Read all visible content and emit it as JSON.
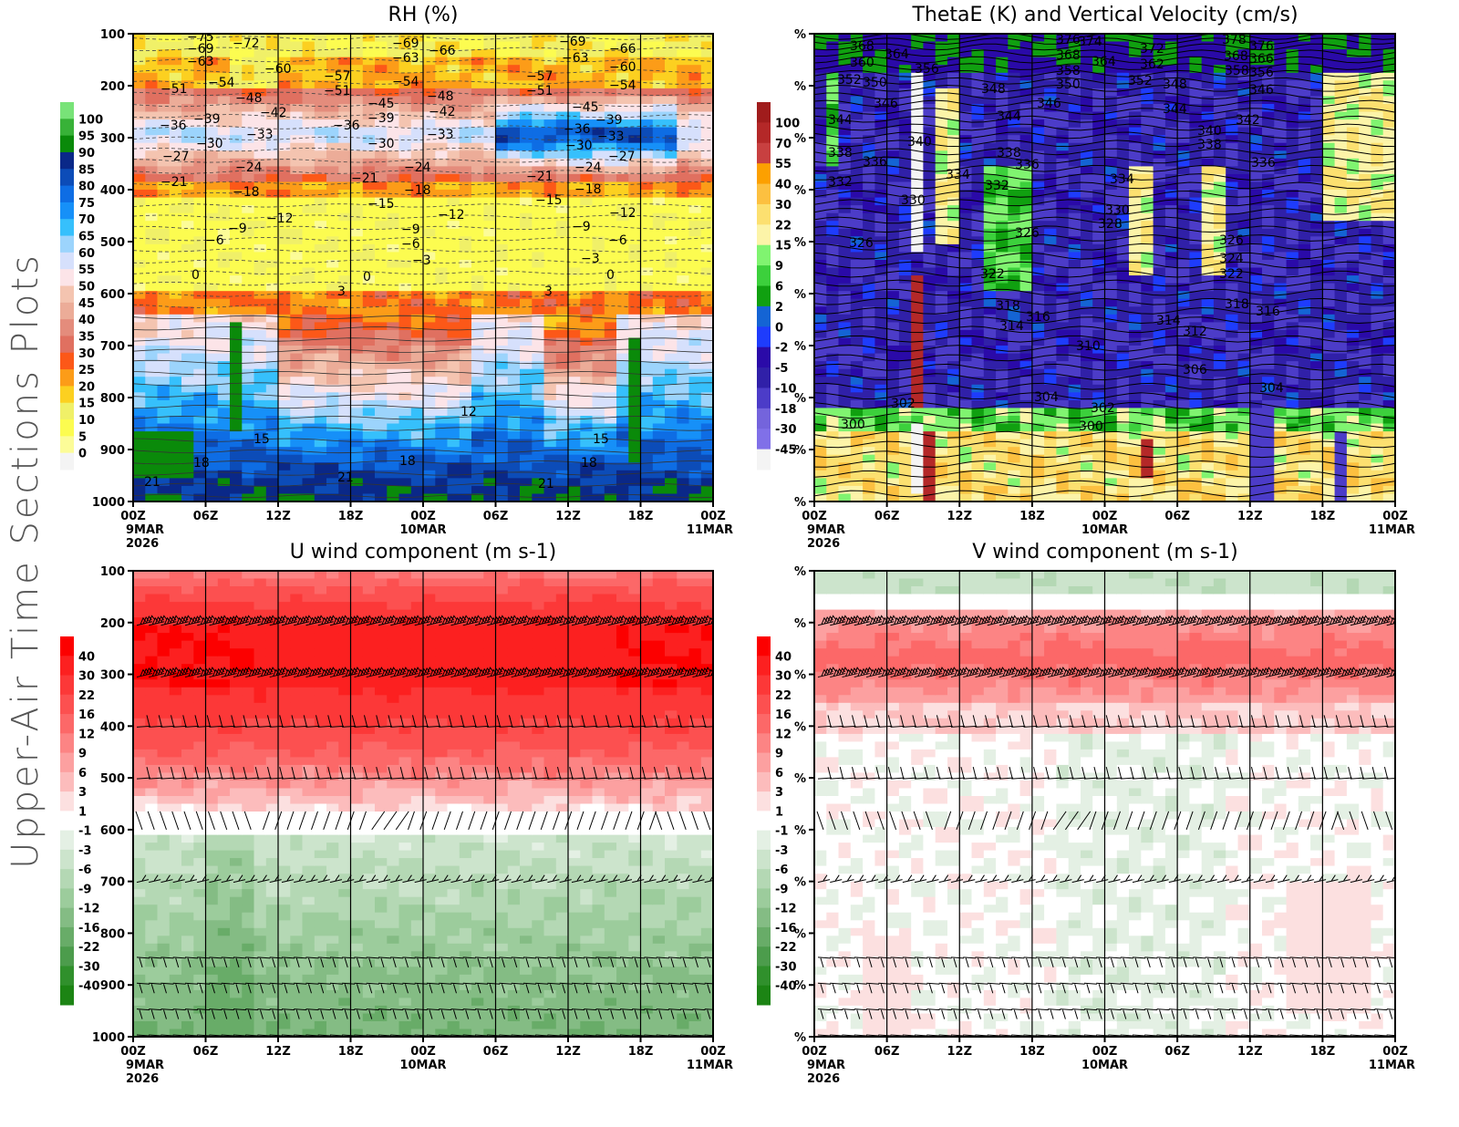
{
  "page": {
    "side_title": "Upper-Air Time Sections Plots"
  },
  "x_axis": {
    "ticks": [
      "00Z",
      "06Z",
      "12Z",
      "18Z",
      "00Z",
      "06Z",
      "12Z",
      "18Z",
      "00Z"
    ],
    "hours": [
      0,
      6,
      12,
      18,
      24,
      30,
      36,
      42,
      48
    ],
    "date_labels": [
      {
        "hour": 0,
        "lines": [
          "9MAR",
          "2026"
        ]
      },
      {
        "hour": 24,
        "lines": [
          "10MAR"
        ]
      },
      {
        "hour": 48,
        "lines": [
          "11MAR"
        ]
      }
    ]
  },
  "chart_data": [
    {
      "id": "rh",
      "type": "heatmap",
      "title": "RH (%)",
      "xlabel": "",
      "ylabel": "",
      "xlim": [
        0,
        48
      ],
      "ylim": [
        1000,
        100
      ],
      "y_ticks": [
        "100",
        "200",
        "300",
        "400",
        "500",
        "600",
        "700",
        "800",
        "900",
        "1000"
      ],
      "y_tick_values": [
        100,
        200,
        300,
        400,
        500,
        600,
        700,
        800,
        900,
        1000
      ],
      "colorbar": {
        "labels": [
          "100",
          "95",
          "90",
          "85",
          "80",
          "75",
          "70",
          "65",
          "60",
          "55",
          "50",
          "45",
          "40",
          "35",
          "30",
          "25",
          "20",
          "15",
          "10",
          "5",
          "0"
        ],
        "colors": [
          "#78e378",
          "#38b238",
          "#0a8a0a",
          "#0a2888",
          "#0c4cb8",
          "#0e6de4",
          "#1690f8",
          "#36c0fc",
          "#9cd4fc",
          "#d6e0fc",
          "#fce4e8",
          "#f4c4b0",
          "#ecac98",
          "#e48c7c",
          "#e07060",
          "#fc5818",
          "#fc9c18",
          "#fcd020",
          "#f0f068",
          "#fcfc50",
          "#fcfc98",
          "#f4f4f4"
        ]
      },
      "temperature_contour_labels": [
        "-75",
        "-72",
        "-69",
        "-66",
        "-63",
        "-60",
        "-57",
        "-54",
        "-51",
        "-48",
        "-45",
        "-42",
        "-39",
        "-36",
        "-33",
        "-30",
        "-27",
        "-24",
        "-21",
        "-18",
        "-15",
        "-12",
        "-9",
        "-6",
        "-3",
        "0",
        "3",
        "12",
        "15",
        "18",
        "21"
      ]
    },
    {
      "id": "thetae",
      "type": "heatmap",
      "title": "ThetaE (K) and Vertical Velocity (cm/s)",
      "xlim": [
        0,
        48
      ],
      "y_ticks": [
        "%",
        "%",
        "%",
        "%",
        "%",
        "%",
        "%",
        "%",
        "%",
        "%"
      ],
      "colorbar": {
        "labels": [
          "100",
          "70",
          "55",
          "40",
          "30",
          "22",
          "15",
          "9",
          "6",
          "2",
          "0",
          "-2",
          "-5",
          "-10",
          "-18",
          "-30",
          "-45"
        ],
        "colors": [
          "#a01c1c",
          "#b42828",
          "#c84040",
          "#fca000",
          "#fcc040",
          "#fce070",
          "#fcf4a8",
          "#80f470",
          "#3cd03c",
          "#10a010",
          "#1464d4",
          "#1e3cfc",
          "#2a0aa8",
          "#3020a8",
          "#4c3cc8",
          "#7464dc",
          "#8070e8",
          "#f4f4f4"
        ]
      },
      "thetae_contour_labels": [
        "378",
        "376",
        "374",
        "372",
        "368",
        "366",
        "364",
        "362",
        "360",
        "358",
        "356",
        "352",
        "350",
        "348",
        "346",
        "344",
        "342",
        "340",
        "338",
        "336",
        "334",
        "332",
        "330",
        "328",
        "326",
        "324",
        "322",
        "318",
        "316",
        "314",
        "312",
        "310",
        "306",
        "304",
        "302",
        "300"
      ]
    },
    {
      "id": "u",
      "type": "heatmap",
      "title": "U wind component (m s-1)",
      "xlim": [
        0,
        48
      ],
      "ylim": [
        1000,
        100
      ],
      "y_ticks": [
        "100",
        "200",
        "300",
        "400",
        "500",
        "600",
        "700",
        "800",
        "900",
        "1000"
      ],
      "y_tick_values": [
        100,
        200,
        300,
        400,
        500,
        600,
        700,
        800,
        900,
        1000
      ],
      "barb_levels": [
        200,
        300,
        400,
        500,
        600,
        700,
        850,
        900,
        950,
        1000
      ],
      "colorbar": {
        "labels": [
          "40",
          "30",
          "22",
          "16",
          "12",
          "9",
          "6",
          "3",
          "1",
          "-1",
          "-3",
          "-6",
          "-9",
          "-12",
          "-16",
          "-22",
          "-30",
          "-40"
        ],
        "colors": [
          "#fc0000",
          "#fc2020",
          "#fc3838",
          "#fc5050",
          "#fc6868",
          "#fc8484",
          "#fca0a0",
          "#fcbcbc",
          "#fce0e0",
          "#ffffff",
          "#e4f0e4",
          "#cce4cc",
          "#b4d8b4",
          "#9ccc9c",
          "#84bc84",
          "#68ac68",
          "#4c9c4c",
          "#30902c",
          "#1c8414"
        ]
      }
    },
    {
      "id": "v",
      "type": "heatmap",
      "title": "V wind component (m s-1)",
      "xlim": [
        0,
        48
      ],
      "y_ticks": [
        "%",
        "%",
        "%",
        "%",
        "%",
        "%",
        "%",
        "%",
        "%",
        "%"
      ],
      "barb_levels": [
        200,
        300,
        400,
        500,
        600,
        700,
        850,
        900,
        950,
        1000
      ],
      "colorbar": {
        "labels": [
          "40",
          "30",
          "22",
          "16",
          "12",
          "9",
          "6",
          "3",
          "1",
          "-1",
          "-3",
          "-6",
          "-9",
          "-12",
          "-16",
          "-22",
          "-30",
          "-40"
        ],
        "colors": [
          "#fc0000",
          "#fc2020",
          "#fc3838",
          "#fc5050",
          "#fc6868",
          "#fc8484",
          "#fca0a0",
          "#fcbcbc",
          "#fce0e0",
          "#ffffff",
          "#e4f0e4",
          "#cce4cc",
          "#b4d8b4",
          "#9ccc9c",
          "#84bc84",
          "#68ac68",
          "#4c9c4c",
          "#30902c",
          "#1c8414"
        ]
      }
    }
  ]
}
